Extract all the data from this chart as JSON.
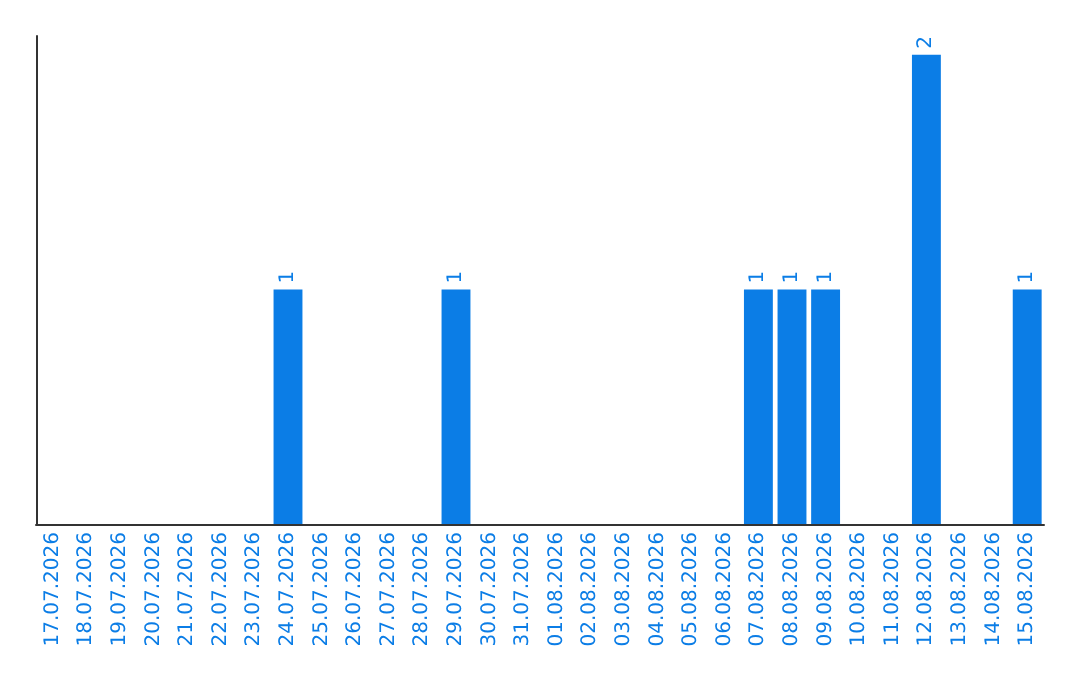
{
  "chart_data": {
    "type": "bar",
    "categories": [
      "17.07.2026",
      "18.07.2026",
      "19.07.2026",
      "20.07.2026",
      "21.07.2026",
      "22.07.2026",
      "23.07.2026",
      "24.07.2026",
      "25.07.2026",
      "26.07.2026",
      "27.07.2026",
      "28.07.2026",
      "29.07.2026",
      "30.07.2026",
      "31.07.2026",
      "01.08.2026",
      "02.08.2026",
      "03.08.2026",
      "04.08.2026",
      "05.08.2026",
      "06.08.2026",
      "07.08.2026",
      "08.08.2026",
      "09.08.2026",
      "10.08.2026",
      "11.08.2026",
      "12.08.2026",
      "13.08.2026",
      "14.08.2026",
      "15.08.2026"
    ],
    "values": [
      0,
      0,
      0,
      0,
      0,
      0,
      0,
      1,
      0,
      0,
      0,
      0,
      1,
      0,
      0,
      0,
      0,
      0,
      0,
      0,
      0,
      1,
      1,
      1,
      0,
      0,
      2,
      0,
      0,
      1
    ],
    "value_labels": [
      null,
      null,
      null,
      null,
      null,
      null,
      null,
      "1",
      null,
      null,
      null,
      null,
      "1",
      null,
      null,
      null,
      null,
      null,
      null,
      null,
      null,
      "1",
      "1",
      "1",
      null,
      null,
      "2",
      null,
      null,
      "1"
    ],
    "color": "#0b7de6",
    "ylim": [
      0,
      2.08
    ],
    "tick_labels": "x",
    "grid": false
  }
}
